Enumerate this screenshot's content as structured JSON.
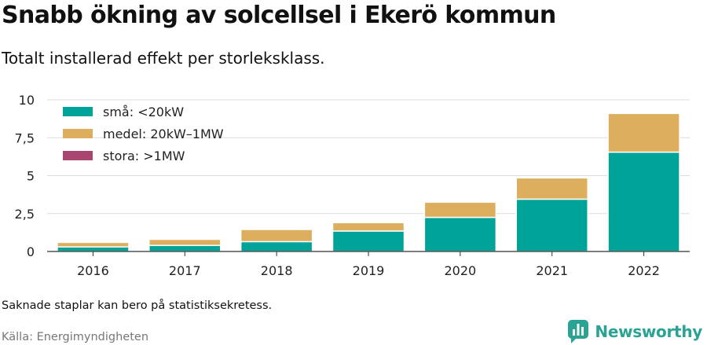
{
  "header": {
    "title": "Snabb ökning av solcellsel i Ekerö kommun",
    "subtitle": "Totalt installerad effekt per storleksklass."
  },
  "footer": {
    "note": "Saknade staplar kan bero på statistiksekretess.",
    "source": "Källa: Energimyndigheten",
    "brand": "Newsworthy"
  },
  "colors": {
    "small": "#00a398",
    "medium": "#dcae5d",
    "large": "#a9466f",
    "brand": "#2aa394"
  },
  "chart_data": {
    "type": "bar",
    "stacked": true,
    "categories": [
      "2016",
      "2017",
      "2018",
      "2019",
      "2020",
      "2021",
      "2022"
    ],
    "series": [
      {
        "name": "små: <20kW",
        "color": "#00a398",
        "values": [
          0.3,
          0.4,
          0.65,
          1.35,
          2.25,
          3.45,
          6.55
        ]
      },
      {
        "name": "medel: 20kW–1MW",
        "color": "#dcae5d",
        "values": [
          0.3,
          0.4,
          0.8,
          0.55,
          1.0,
          1.4,
          2.55
        ]
      },
      {
        "name": "stora: >1MW",
        "color": "#a9466f",
        "values": [
          0,
          0,
          0,
          0,
          0,
          0,
          0
        ]
      }
    ],
    "y_ticks": [
      "0",
      "2,5",
      "5",
      "7,5",
      "10"
    ],
    "ylim": [
      0,
      10
    ],
    "grid": true,
    "legend_position": "top-left"
  }
}
